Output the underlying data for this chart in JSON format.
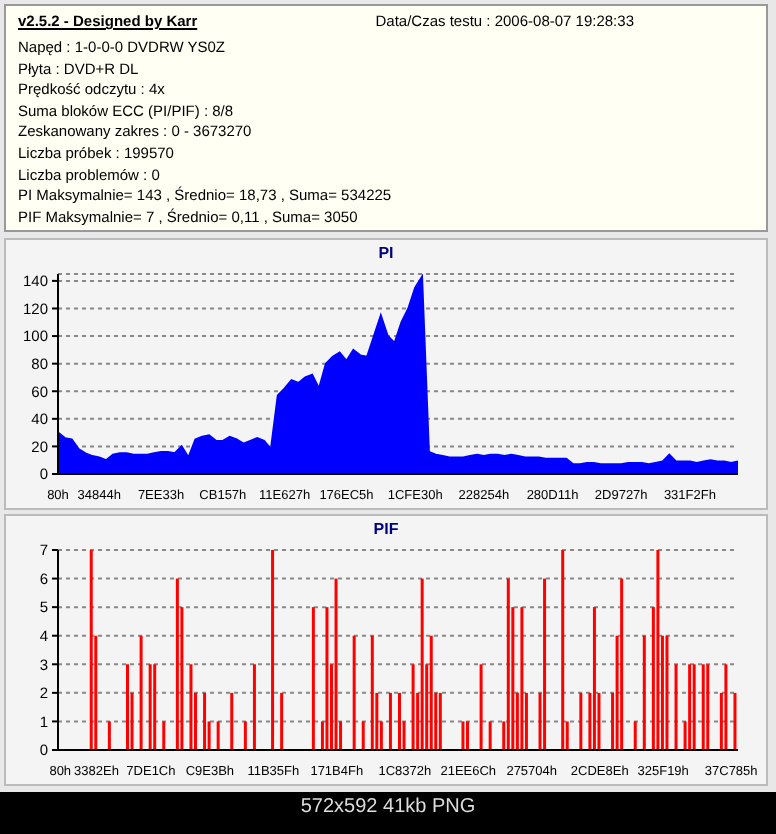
{
  "chart_data": [
    {
      "type": "other",
      "title": "v2.5.2 - Designed by Karr",
      "subtitle": "Data/Czas testu : 2006-08-07 19:28:33",
      "annotations": [
        "Napęd : 1-0-0-0 DVDRW YS0Z",
        "Płyta : DVD+R DL",
        "Prędkość odczytu : 4x",
        "Suma bloków ECC (PI/PIF) : 8/8",
        "Zeskanowany zakres : 0 - 3673270",
        "Liczba próbek : 199570",
        "Liczba problemów : 0",
        "PI Maksymalnie= 143 , Średnio= 18,73 , Suma= 534225",
        "PIF Maksymalnie= 7 , Średnio= 0,11 , Suma= 3050"
      ]
    },
    {
      "type": "area",
      "title": "PI",
      "grid": "y",
      "ylim": [
        0,
        145
      ],
      "yticks": [
        0,
        20,
        40,
        60,
        80,
        100,
        120,
        140
      ],
      "categories": [
        "80h",
        null,
        null,
        null,
        null,
        null,
        "34844h",
        null,
        null,
        null,
        null,
        null,
        null,
        null,
        null,
        "7EE33h",
        null,
        null,
        null,
        null,
        null,
        null,
        null,
        null,
        "CB157h",
        null,
        null,
        null,
        null,
        null,
        null,
        null,
        null,
        "11E627h",
        null,
        null,
        null,
        null,
        null,
        null,
        null,
        null,
        "176EC5h",
        null,
        null,
        null,
        null,
        null,
        null,
        null,
        null,
        null,
        "1CFE30h",
        null,
        null,
        null,
        null,
        null,
        null,
        null,
        null,
        null,
        "228254h",
        null,
        null,
        null,
        null,
        null,
        null,
        null,
        null,
        null,
        "280D11h",
        null,
        null,
        null,
        null,
        null,
        null,
        null,
        null,
        null,
        "2D9727h",
        null,
        null,
        null,
        null,
        null,
        null,
        null,
        null,
        null,
        "331F2Fh",
        null,
        null,
        null,
        null,
        null,
        null,
        null
      ],
      "series": [
        {
          "color": "#0000ff",
          "values": [
            30,
            26,
            25,
            18,
            15,
            13,
            12,
            10,
            14,
            15,
            15,
            14,
            14,
            14,
            15,
            16,
            16,
            15,
            20,
            12,
            25,
            27,
            28,
            24,
            24,
            27,
            25,
            22,
            24,
            26,
            24,
            18,
            57,
            62,
            68,
            66,
            70,
            72,
            62,
            80,
            85,
            88,
            82,
            90,
            86,
            85,
            100,
            115,
            100,
            95,
            110,
            120,
            135,
            143,
            16,
            14,
            13,
            12,
            12,
            12,
            13,
            14,
            13,
            14,
            14,
            13,
            14,
            13,
            12,
            12,
            12,
            11,
            11,
            11,
            11,
            7,
            7,
            8,
            8,
            7,
            7,
            7,
            7,
            8,
            8,
            8,
            7,
            8,
            9,
            14,
            9,
            9,
            9,
            8,
            9,
            10,
            9,
            9,
            8,
            9
          ]
        }
      ]
    },
    {
      "type": "bar",
      "title": "PIF",
      "grid": "y",
      "ylim": [
        0,
        7
      ],
      "yticks": [
        0,
        1,
        2,
        3,
        4,
        5,
        6,
        7
      ],
      "categories": [
        "80h",
        null,
        null,
        null,
        null,
        null,
        null,
        null,
        "3382Eh",
        null,
        null,
        null,
        null,
        null,
        null,
        null,
        null,
        null,
        null,
        null,
        "7DE1Ch",
        null,
        null,
        null,
        null,
        null,
        null,
        null,
        null,
        null,
        null,
        null,
        null,
        "C9E3Bh",
        null,
        null,
        null,
        null,
        null,
        null,
        null,
        null,
        null,
        null,
        null,
        null,
        null,
        "11B35Fh",
        null,
        null,
        null,
        null,
        null,
        null,
        null,
        null,
        null,
        null,
        null,
        null,
        null,
        "171B4Fh",
        null,
        null,
        null,
        null,
        null,
        null,
        null,
        null,
        null,
        null,
        null,
        null,
        null,
        null,
        "1C8372h",
        null,
        null,
        null,
        null,
        null,
        null,
        null,
        null,
        null,
        null,
        null,
        null,
        null,
        "21EE6Ch",
        null,
        null,
        null,
        null,
        null,
        null,
        null,
        null,
        null,
        null,
        null,
        null,
        null,
        "275704h",
        null,
        null,
        null,
        null,
        null,
        null,
        null,
        null,
        null,
        null,
        null,
        null,
        null,
        null,
        "2CDE8Eh",
        null,
        null,
        null,
        null,
        null,
        null,
        null,
        null,
        null,
        null,
        null,
        null,
        null,
        "325F19h",
        null,
        null,
        null,
        null,
        null,
        null,
        null,
        null,
        null,
        null,
        null,
        null,
        null,
        null,
        "37C785h",
        null
      ],
      "series": [
        {
          "color": "#ff0000",
          "values": [
            0,
            0,
            0,
            0,
            0,
            0,
            0,
            7,
            4,
            0,
            0,
            1,
            0,
            0,
            0,
            3,
            2,
            0,
            4,
            0,
            3,
            3,
            0,
            1,
            0,
            0,
            6,
            5,
            0,
            3,
            2,
            0,
            2,
            1,
            0,
            1,
            0,
            0,
            2,
            0,
            0,
            1,
            0,
            3,
            0,
            0,
            0,
            7,
            0,
            2,
            0,
            0,
            0,
            0,
            0,
            0,
            5,
            0,
            1,
            5,
            3,
            6,
            1,
            0,
            0,
            4,
            0,
            1,
            0,
            4,
            2,
            1,
            0,
            2,
            0,
            2,
            1,
            0,
            3,
            2,
            6,
            3,
            4,
            2,
            2,
            0,
            0,
            0,
            0,
            1,
            1,
            0,
            0,
            3,
            0,
            1,
            0,
            0,
            1,
            6,
            5,
            2,
            5,
            2,
            0,
            0,
            2,
            6,
            0,
            0,
            0,
            7,
            1,
            0,
            0,
            2,
            0,
            2,
            5,
            2,
            0,
            0,
            2,
            4,
            6,
            0,
            0,
            1,
            0,
            4,
            0,
            5,
            7,
            4,
            4,
            0,
            3,
            0,
            1,
            3,
            3,
            0,
            3,
            3,
            0,
            0,
            2,
            3,
            0,
            2
          ]
        }
      ],
      "annotations": [
        "572x592 41kb PNG"
      ]
    }
  ]
}
